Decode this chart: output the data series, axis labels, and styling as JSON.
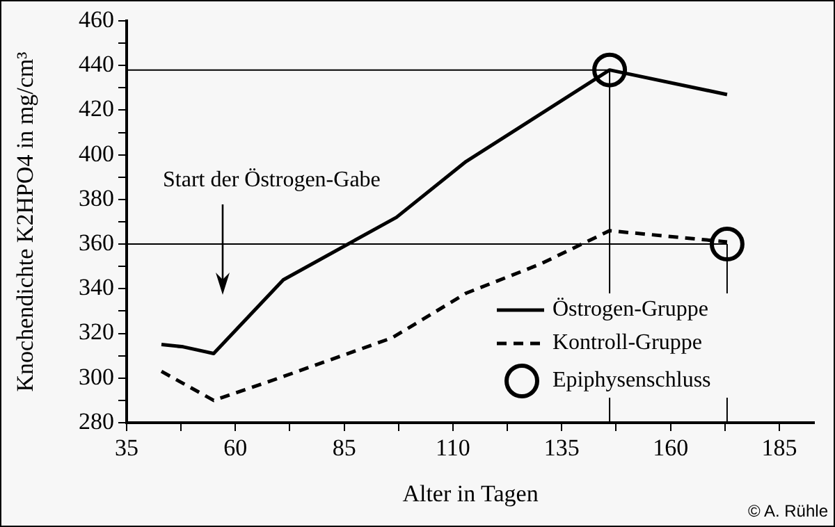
{
  "chart_data": {
    "type": "line",
    "xlabel": "Alter in Tagen",
    "ylabel": "Knochendichte K2HPO4 in mg/cm³",
    "xlim": [
      35,
      193
    ],
    "xticks": [
      35,
      {
        "value": 47.5,
        "label": null
      },
      60,
      {
        "value": 72.5,
        "label": null
      },
      85,
      {
        "value": 97.5,
        "label": null
      },
      110,
      {
        "value": 122.5,
        "label": null
      },
      135,
      {
        "value": 147.5,
        "label": null
      },
      160,
      {
        "value": 172.5,
        "label": null
      },
      185
    ],
    "ylim": [
      280,
      460
    ],
    "yticks": [
      280,
      {
        "value": 290,
        "label": null
      },
      300,
      {
        "value": 310,
        "label": null
      },
      320,
      {
        "value": 330,
        "label": null
      },
      340,
      {
        "value": 350,
        "label": null
      },
      360,
      {
        "value": 370,
        "label": null
      },
      380,
      {
        "value": 390,
        "label": null
      },
      400,
      {
        "value": 410,
        "label": null
      },
      420,
      {
        "value": 430,
        "label": null
      },
      440,
      {
        "value": 450,
        "label": null
      },
      460
    ],
    "grid": false,
    "legend": "bottom right",
    "series": [
      {
        "name": "Östrogen-Gruppe",
        "color": "#000000",
        "line_style": "solid",
        "marker": "none",
        "x": [
          43,
          48,
          55,
          71,
          97,
          113,
          146,
          173
        ],
        "values": [
          315,
          314,
          311,
          344,
          372,
          397,
          438,
          427
        ]
      },
      {
        "name": "Kontroll-Gruppe",
        "color": "#000000",
        "line_style": "dashed",
        "marker": "none",
        "x": [
          43,
          55,
          70,
          96,
          113,
          130,
          146,
          173
        ],
        "values": [
          303,
          290,
          300,
          318,
          338,
          351,
          366,
          361
        ]
      },
      {
        "name": "Epiphysenschluss",
        "type": "scatter",
        "color": "#000000",
        "marker": "circle",
        "x": [
          146,
          173
        ],
        "values": [
          438,
          360
        ]
      }
    ],
    "ref_lines": [
      {
        "axis": "y",
        "value": 438
      },
      {
        "axis": "x",
        "value": 146
      },
      {
        "axis": "y",
        "value": 360
      },
      {
        "axis": "x",
        "value": 173
      }
    ],
    "annotations": [
      "Start der Östrogen-Gabe",
      "© A. Rühle"
    ]
  }
}
